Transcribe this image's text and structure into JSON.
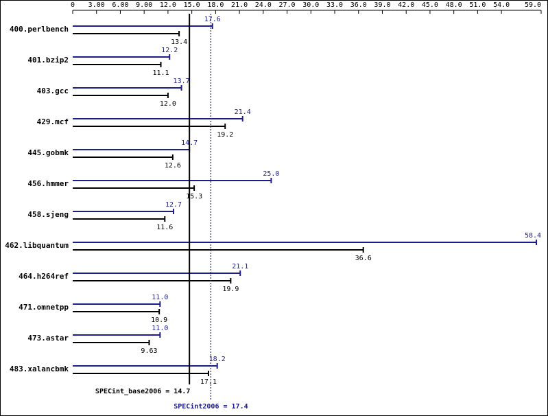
{
  "chart_data": {
    "type": "bar",
    "orientation": "horizontal",
    "categories": [
      "400.perlbench",
      "401.bzip2",
      "403.gcc",
      "429.mcf",
      "445.gobmk",
      "456.hmmer",
      "458.sjeng",
      "462.libquantum",
      "464.h264ref",
      "471.omnetpp",
      "473.astar",
      "483.xalancbmk"
    ],
    "series": [
      {
        "color": "#1c1c8c",
        "values": [
          17.6,
          12.2,
          13.7,
          21.4,
          14.7,
          25.0,
          12.7,
          58.4,
          21.1,
          11.0,
          11.0,
          18.2
        ],
        "value_labels": [
          "17.6",
          "12.2",
          "13.7",
          "21.4",
          "14.7",
          "25.0",
          "12.7",
          "58.4",
          "21.1",
          "11.0",
          "11.0",
          "18.2"
        ]
      },
      {
        "color": "#000000",
        "values": [
          13.4,
          11.1,
          12.0,
          19.2,
          12.6,
          15.3,
          11.6,
          36.6,
          19.9,
          10.9,
          9.63,
          17.1
        ],
        "value_labels": [
          "13.4",
          "11.1",
          "12.0",
          "19.2",
          "12.6",
          "15.3",
          "11.6",
          "36.6",
          "19.9",
          "10.9",
          "9.63",
          "17.1"
        ]
      }
    ],
    "xlim": [
      0,
      59
    ],
    "xticks": [
      0,
      {
        "value": 3,
        "label": "3.00"
      },
      {
        "value": 6,
        "label": "6.00"
      },
      {
        "value": 9,
        "label": "9.00"
      },
      {
        "value": 12,
        "label": "12.0"
      },
      {
        "value": 15,
        "label": "15.0"
      },
      {
        "value": 18,
        "label": "18.0"
      },
      {
        "value": 21,
        "label": "21.0"
      },
      {
        "value": 24,
        "label": "24.0"
      },
      {
        "value": 27,
        "label": "27.0"
      },
      {
        "value": 30,
        "label": "30.0"
      },
      {
        "value": 33,
        "label": "33.0"
      },
      {
        "value": 36,
        "label": "36.0"
      },
      {
        "value": 39,
        "label": "39.0"
      },
      {
        "value": 42,
        "label": "42.0"
      },
      {
        "value": 45,
        "label": "45.0"
      },
      {
        "value": 48,
        "label": "48.0"
      },
      {
        "value": 51,
        "label": "51.0"
      },
      {
        "value": 54,
        "label": "54.0"
      },
      {
        "value": 59,
        "label": "59.0"
      }
    ],
    "reference_lines": [
      {
        "label": "SPECint_base2006 = 14.7",
        "value": 14.7,
        "color": "#000000",
        "style": "solid"
      },
      {
        "label": "SPECint2006 = 17.4",
        "value": 17.4,
        "color": "#1c1c8c",
        "style": "dotted"
      }
    ]
  }
}
